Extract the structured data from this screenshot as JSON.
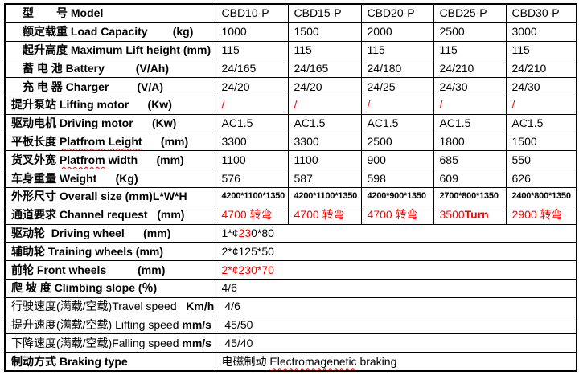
{
  "colors": {
    "accent_red": "#ff0000",
    "border": "#000000",
    "text": "#000000",
    "background": "#ffffff"
  },
  "rows": [
    {
      "label": "　型　　号 Model",
      "values": [
        "CBD10-P",
        "CBD15-P",
        "CBD20-P",
        "CBD25-P",
        "CBD30-P"
      ]
    },
    {
      "label": "　额定载重 Load Capacity        (kg)",
      "values": [
        "1000",
        "1500",
        "2000",
        "2500",
        "3000"
      ]
    },
    {
      "label": "　起升高度 Maximum Lift height (mm)",
      "values": [
        "115",
        "115",
        "115",
        "115",
        "115"
      ]
    },
    {
      "label": "　蓄 电 池 Battery          (V/Ah)",
      "values": [
        "24/165",
        "24/165",
        "24/180",
        "24/210",
        "24/210"
      ]
    },
    {
      "label": "　充 电 器 Charger         (V/A)",
      "values": [
        "24/20",
        "24/20",
        "24/25",
        "24/30",
        "24/30"
      ]
    },
    {
      "label": "提升泵站 Lifting motor      (Kw)",
      "values": [
        "/",
        "/",
        "/",
        "/",
        "/"
      ]
    },
    {
      "label": "驱动电机 Driving motor      (Kw)",
      "values": [
        "AC1.5",
        "AC1.5",
        "AC1.5",
        "AC1.5",
        "AC1.5"
      ]
    },
    {
      "label": [
        "平板长度 ",
        "Platfrom",
        " ",
        "Leight",
        "      (mm)"
      ],
      "values": [
        "3300",
        "3300",
        "2500",
        "1800",
        "1500"
      ]
    },
    {
      "label": [
        "货叉外宽 ",
        "Platfrom",
        " width      (mm)"
      ],
      "values": [
        "1100",
        "1100",
        "900",
        "685",
        "550"
      ]
    },
    {
      "label": "车身重量 Weight      (Kg)",
      "values": [
        "576",
        "587",
        "598",
        "609",
        "626"
      ]
    },
    {
      "label": "外形尺寸 Overall size (mm)L*W*H",
      "values": [
        "4200*1100*1350",
        "4200*1100*1350",
        "4200*900*1350",
        "2700*800*1350",
        "2400*800*1350"
      ]
    },
    {
      "label": "通道要求 Channel request   (mm)",
      "values": [
        "4700 转弯",
        "4700 转弯",
        "4700 转弯",
        [
          "3500",
          "Turn"
        ],
        "2900 转弯"
      ]
    },
    {
      "label": "驱动轮  Driving wheel      (mm)",
      "value": [
        "1*¢",
        "23",
        "0*80"
      ]
    },
    {
      "label": "辅助轮 Training wheels (mm)",
      "value": "2*¢125*50"
    },
    {
      "label": "前轮 Front wheels          (mm)",
      "value": "2*¢230*70"
    },
    {
      "label": "爬 坡 度 Climbing slope (％)",
      "value": "4/6"
    },
    {
      "label": [
        "行驶速度(满载/空载)Travel speed   ",
        "Km/h"
      ],
      "value": " 4/6"
    },
    {
      "label": [
        "提升速度(满载/空载) Lifting speed ",
        "mm/s"
      ],
      "value": " 45/50"
    },
    {
      "label": [
        "下降速度(满载/空载)Falling speed ",
        "mm/s"
      ],
      "value": " 45/40"
    },
    {
      "label": "制动方式 Braking type",
      "value": [
        "电磁制动 ",
        "Electromagenetic",
        " braking"
      ]
    }
  ]
}
